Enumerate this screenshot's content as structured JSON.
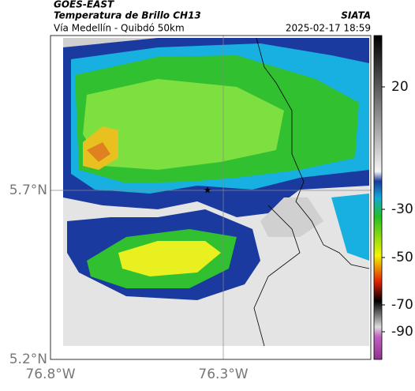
{
  "header": {
    "title": "GOES-EAST",
    "subtitle": "Temperatura de Brillo CH13",
    "location": "Vía Medellín - Quibdó 50km",
    "source": "SIATA",
    "timestamp": "2025-02-17 18:59"
  },
  "map": {
    "lat_labels": [
      "5.7°N",
      "5.2°N"
    ],
    "lon_labels": [
      "76.8°W",
      "76.3°W"
    ]
  },
  "colorbar": {
    "labels": [
      "20",
      "-30",
      "-50",
      "-70",
      "-90"
    ]
  }
}
